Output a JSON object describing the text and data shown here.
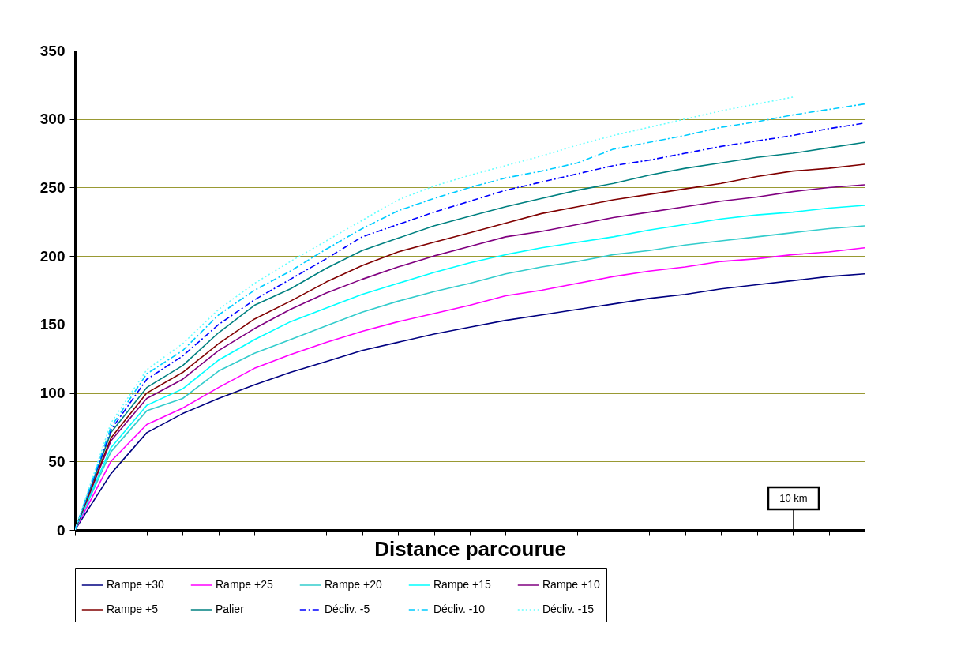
{
  "chart_data": {
    "type": "line",
    "xlabel": "Distance parcourue",
    "categories": [
      null,
      null,
      null,
      null,
      null,
      null,
      null,
      null,
      null,
      null,
      null,
      null,
      null,
      null,
      null,
      null,
      null,
      null,
      null,
      null,
      null,
      null,
      null
    ],
    "ylim": [
      0,
      350
    ],
    "yticks": [
      0,
      50,
      100,
      150,
      200,
      250,
      300,
      350
    ],
    "tick_labels": "y",
    "grid": "y",
    "legend": "bottom",
    "marker": "none",
    "annotations": [
      "10 km"
    ],
    "series": [
      {
        "name": "Rampe +30",
        "color": "#000080",
        "line_style": "solid",
        "values": [
          0,
          41,
          71,
          85,
          96,
          106,
          115,
          123,
          131,
          137,
          143,
          148,
          153,
          157,
          161,
          165,
          169,
          172,
          176,
          179,
          182,
          185,
          187
        ]
      },
      {
        "name": "Rampe +25",
        "color": "#ff00ff",
        "line_style": "solid",
        "values": [
          0,
          50,
          77,
          89,
          104,
          118,
          128,
          137,
          145,
          152,
          158,
          164,
          171,
          175,
          180,
          185,
          189,
          192,
          196,
          198,
          201,
          203,
          206
        ]
      },
      {
        "name": "Rampe +20",
        "color": "#33cccc",
        "line_style": "solid",
        "values": [
          0,
          57,
          87,
          96,
          116,
          129,
          139,
          149,
          159,
          167,
          174,
          180,
          187,
          192,
          196,
          201,
          204,
          208,
          211,
          214,
          217,
          220,
          222
        ]
      },
      {
        "name": "Rampe +15",
        "color": "#00ffff",
        "line_style": "solid",
        "values": [
          0,
          60,
          91,
          103,
          124,
          139,
          152,
          162,
          172,
          180,
          188,
          195,
          201,
          206,
          210,
          214,
          219,
          223,
          227,
          230,
          232,
          235,
          237
        ]
      },
      {
        "name": "Rampe +10",
        "color": "#800080",
        "line_style": "solid",
        "values": [
          0,
          65,
          96,
          110,
          131,
          147,
          161,
          173,
          183,
          192,
          200,
          207,
          214,
          218,
          223,
          228,
          232,
          236,
          240,
          243,
          247,
          250,
          252
        ]
      },
      {
        "name": "Rampe +5",
        "color": "#800000",
        "line_style": "solid",
        "values": [
          0,
          67,
          100,
          115,
          136,
          154,
          167,
          181,
          193,
          203,
          210,
          217,
          224,
          231,
          236,
          241,
          245,
          249,
          253,
          258,
          262,
          264,
          267
        ]
      },
      {
        "name": "Palier",
        "color": "#008080",
        "line_style": "solid",
        "values": [
          0,
          71,
          104,
          120,
          144,
          164,
          176,
          191,
          204,
          213,
          222,
          229,
          236,
          242,
          248,
          253,
          259,
          264,
          268,
          272,
          275,
          279,
          283
        ]
      },
      {
        "name": "Décliv. -5",
        "color": "#0000ff",
        "line_style": "dashed",
        "values": [
          0,
          73,
          110,
          127,
          150,
          168,
          183,
          198,
          214,
          223,
          232,
          240,
          248,
          254,
          260,
          266,
          270,
          275,
          280,
          284,
          288,
          293,
          297
        ]
      },
      {
        "name": "Décliv. -10",
        "color": "#00ccff",
        "line_style": "dashed",
        "values": [
          0,
          75,
          114,
          131,
          157,
          175,
          189,
          205,
          220,
          233,
          242,
          250,
          257,
          262,
          268,
          278,
          283,
          288,
          294,
          298,
          303,
          307,
          311
        ]
      },
      {
        "name": "Décliv. -15",
        "color": "#66ffff",
        "line_style": "dotted",
        "values": [
          0,
          78,
          117,
          136,
          161,
          180,
          196,
          211,
          226,
          241,
          251,
          259,
          266,
          273,
          281,
          288,
          294,
          300,
          306,
          311,
          316,
          null,
          null
        ]
      }
    ]
  }
}
